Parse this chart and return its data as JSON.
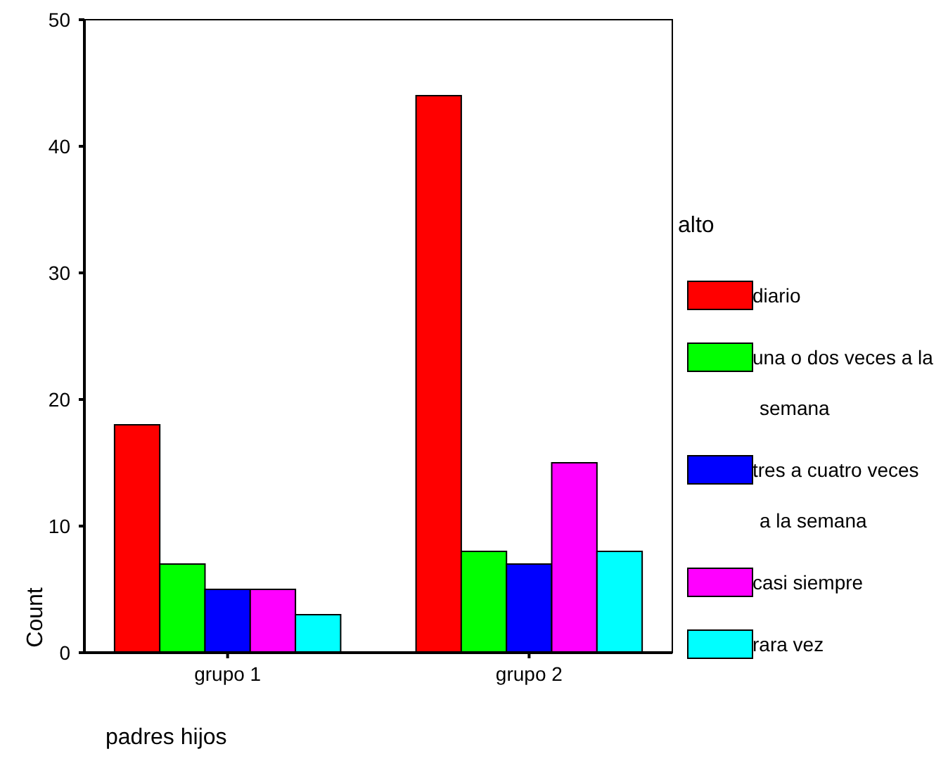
{
  "chart_data": {
    "type": "bar",
    "xlabel": "padres hijos",
    "ylabel": "Count",
    "legend_title": "alto",
    "categories": [
      "grupo 1",
      "grupo 2"
    ],
    "series": [
      {
        "name": "diario",
        "color": "#ff0000",
        "values": [
          18,
          44
        ]
      },
      {
        "name": "una o dos veces a la semana",
        "color": "#00ff00",
        "values": [
          7,
          8
        ]
      },
      {
        "name": "tres a cuatro veces a la semana",
        "color": "#0000ff",
        "values": [
          5,
          7
        ]
      },
      {
        "name": "casi siempre",
        "color": "#ff00ff",
        "values": [
          5,
          15
        ]
      },
      {
        "name": "rara vez",
        "color": "#00ffff",
        "values": [
          3,
          8
        ]
      }
    ],
    "ylim": [
      0,
      50
    ],
    "yticks": [
      0,
      10,
      20,
      30,
      40,
      50
    ],
    "grid": false,
    "legend": "right"
  }
}
